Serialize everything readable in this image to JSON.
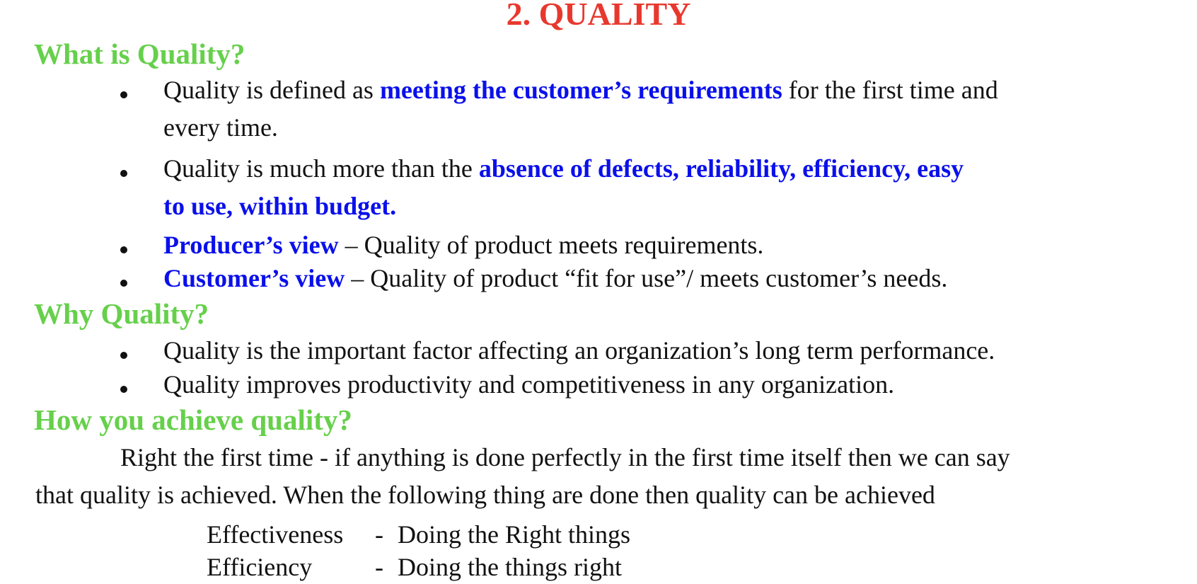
{
  "title": "2. QUALITY",
  "sections": {
    "what": {
      "heading": "What is Quality?",
      "b1": {
        "pre": "Quality is defined as ",
        "em": "meeting the customer’s requirements",
        "post": " for the first time and",
        "line2": "every time."
      },
      "b2": {
        "pre": "Quality is much more than the ",
        "em": "absence of defects, reliability, efficiency, easy",
        "em2": "to use, within budget."
      },
      "b3": {
        "em": "Producer’s view",
        "post": " – Quality of product meets requirements."
      },
      "b4": {
        "em": "Customer’s view",
        "post": " – Quality of product “fit for use”/ meets customer’s needs."
      }
    },
    "why": {
      "heading": "Why Quality?",
      "b1": "Quality is the important factor affecting an organization’s long term performance.",
      "b2": "Quality improves productivity and competitiveness in any organization."
    },
    "how": {
      "heading": "How you achieve quality?",
      "para_line1": "Right the first time - if anything is done perfectly in the first time itself then we can say",
      "para_line2": "that quality is achieved. When the following thing are done then quality can be achieved",
      "defs": [
        {
          "term": "Effectiveness",
          "dash": "-",
          "desc": "Doing the Right things"
        },
        {
          "term": "Efficiency",
          "dash": "-",
          "desc": "Doing the things right"
        }
      ]
    }
  },
  "colors": {
    "title": "#e8382e",
    "heading": "#66d04b",
    "emphasis": "#0a10ea",
    "text": "#111111"
  }
}
